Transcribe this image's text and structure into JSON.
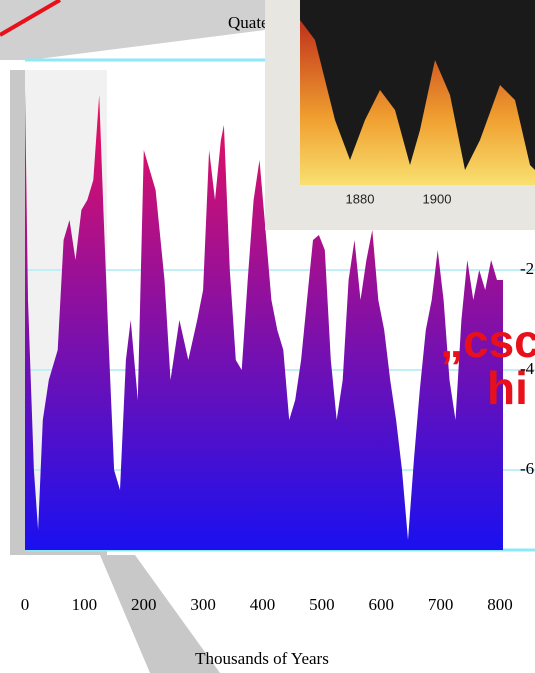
{
  "chart_data": {
    "type": "area",
    "title": "Quate",
    "xlabel": "Thousands of Years",
    "x": [
      0,
      5,
      15,
      22,
      30,
      40,
      55,
      65,
      75,
      85,
      95,
      105,
      115,
      125,
      132,
      140,
      150,
      160,
      170,
      178,
      190,
      200,
      210,
      220,
      235,
      245,
      260,
      275,
      290,
      300,
      310,
      320,
      330,
      335,
      345,
      355,
      365,
      375,
      385,
      395,
      405,
      415,
      425,
      435,
      445,
      455,
      465,
      475,
      485,
      495,
      505,
      515,
      525,
      535,
      545,
      555,
      565,
      575,
      585,
      595,
      605,
      615,
      625,
      635,
      645,
      655,
      665,
      675,
      685,
      695,
      705,
      715,
      725,
      735,
      745,
      755,
      765,
      775,
      785,
      795,
      805
    ],
    "values": [
      1.6,
      -2.6,
      -6,
      -7.2,
      -5,
      -4.2,
      -3.6,
      -1.4,
      -1,
      -1.8,
      -0.8,
      -0.6,
      -0.2,
      1.5,
      -0.8,
      -3.2,
      -6,
      -6.4,
      -3.8,
      -3,
      -4.6,
      0.4,
      0,
      -0.4,
      -2.2,
      -4.2,
      -3,
      -3.8,
      -3,
      -2.4,
      0.4,
      -0.6,
      0.6,
      0.9,
      -2,
      -3.8,
      -4,
      -2.2,
      -0.6,
      0.2,
      -1.2,
      -2.6,
      -3.2,
      -3.6,
      -5,
      -4.6,
      -3.8,
      -2.6,
      -1.4,
      -1.3,
      -1.6,
      -3.8,
      -5,
      -4.2,
      -2.2,
      -1.4,
      -2.6,
      -1.8,
      -1.2,
      -2.6,
      -3.2,
      -4.2,
      -5,
      -6,
      -7.4,
      -5.8,
      -4.4,
      -3.2,
      -2.6,
      -1.6,
      -2.6,
      -4.2,
      -5,
      -3,
      -1.8,
      -2.6,
      -2,
      -2.4,
      -1.8,
      -2.2,
      -2.2
    ],
    "colors": [
      "#f0105a",
      "#1a10f0"
    ],
    "xlim": [
      0,
      800
    ],
    "xticks": [
      0,
      100,
      200,
      300,
      400,
      500,
      600,
      700,
      800
    ],
    "ylim": [
      -7.6,
      2.2
    ],
    "yticks": [
      -2,
      -4,
      -6
    ],
    "grid": true,
    "annotations": [
      "„csc",
      "hi"
    ],
    "inset": {
      "xticks": [
        "1880",
        "1900"
      ]
    }
  }
}
